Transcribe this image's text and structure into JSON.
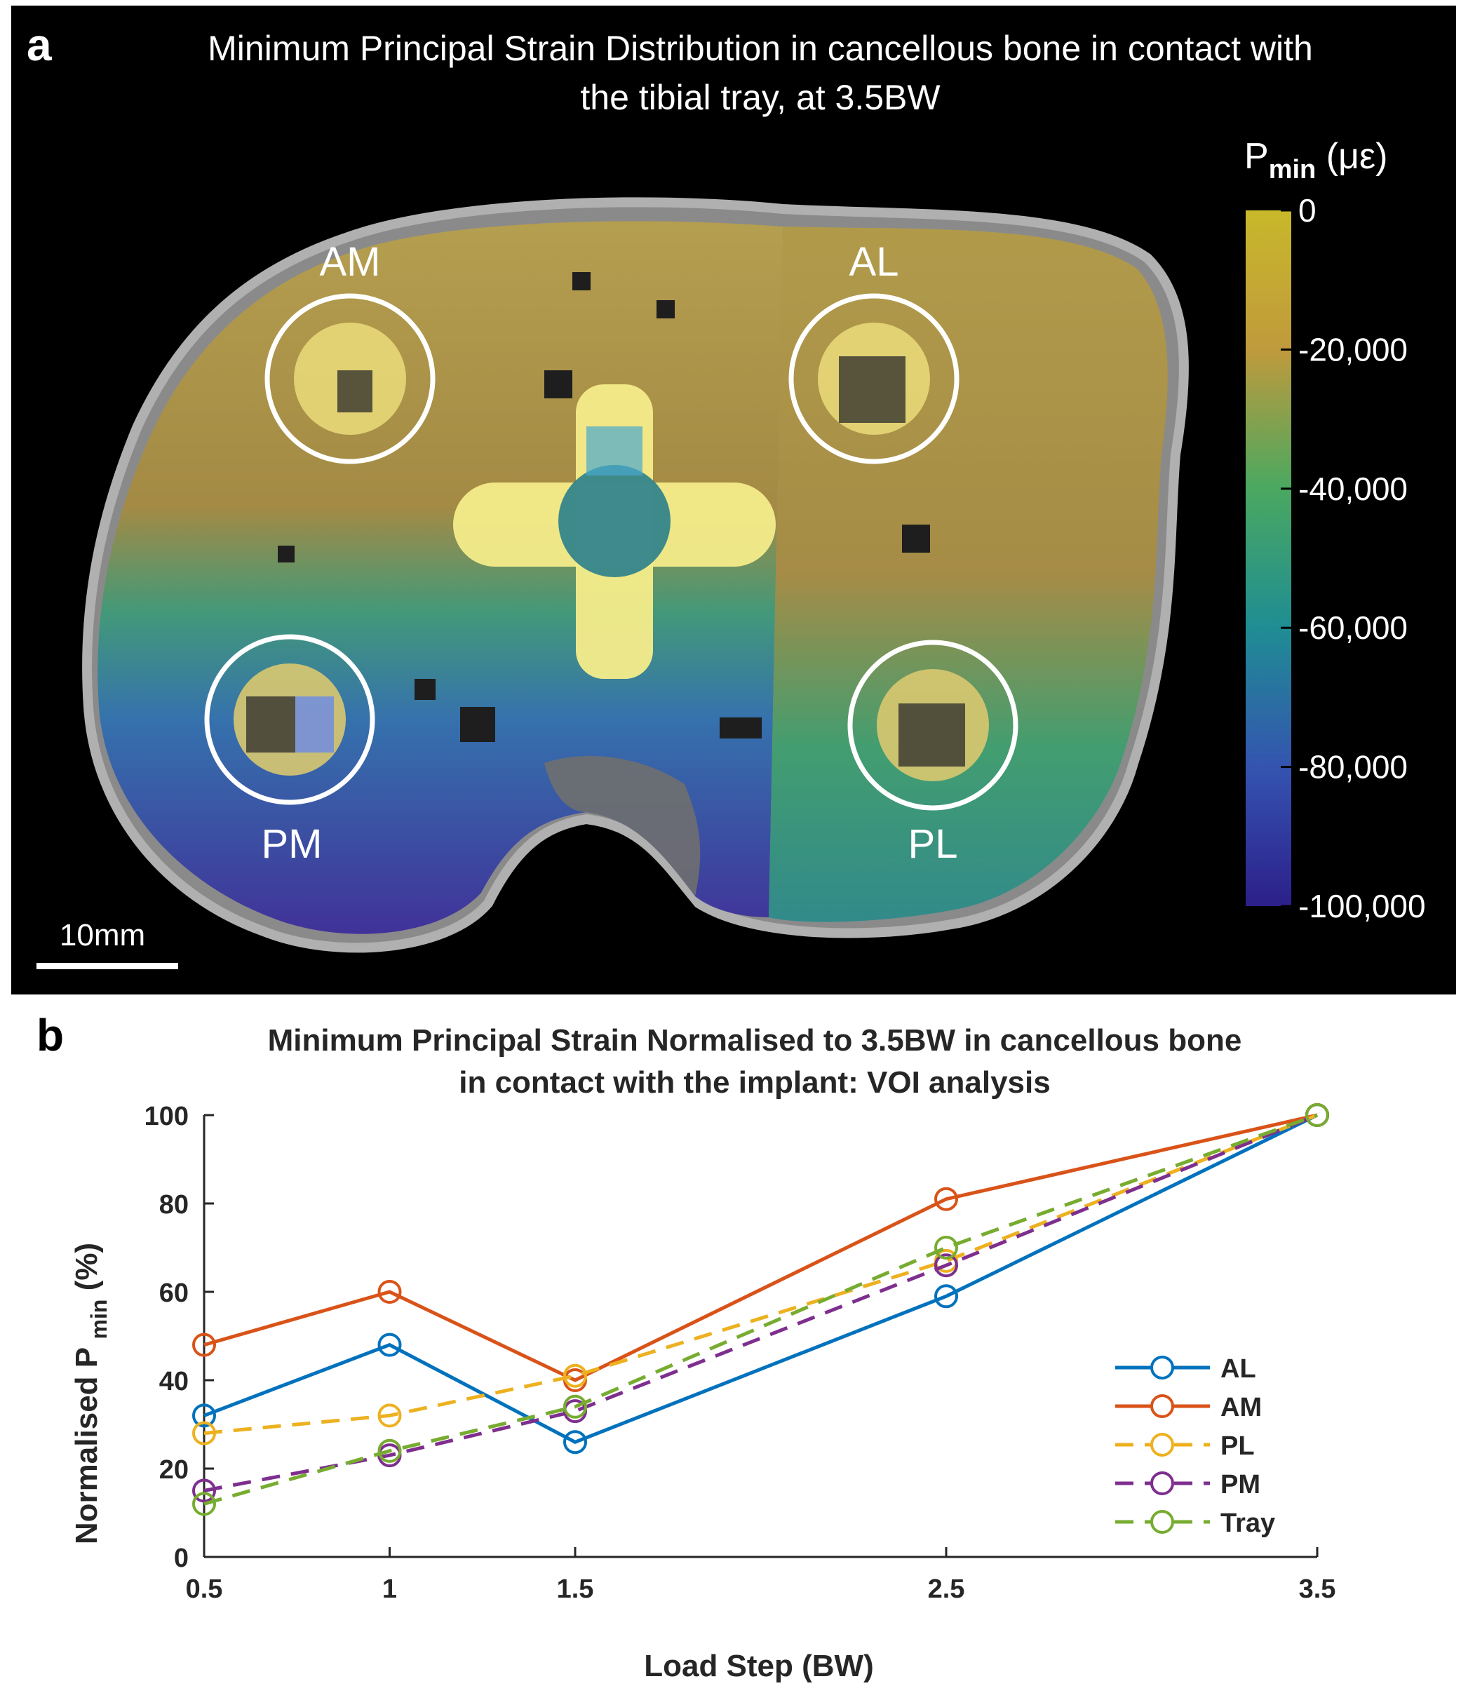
{
  "panel_a": {
    "label": "a",
    "title_line1": "Minimum Principal Strain Distribution in cancellous bone in contact with",
    "title_line2": "the tibial tray, at 3.5BW",
    "colorbar_title_main": "P",
    "colorbar_title_sub": "min",
    "colorbar_title_unit": "(με)",
    "colorbar_ticks": [
      "0",
      "-20,000",
      "-40,000",
      "-60,000",
      "-80,000",
      "-100,000"
    ],
    "colorbar_range": [
      -100000,
      0
    ],
    "colormap": [
      "#fde725",
      "#c9a93a",
      "#9aa83a",
      "#35b779",
      "#21918c",
      "#31688e",
      "#443983",
      "#440154"
    ],
    "regions": [
      "AM",
      "AL",
      "PM",
      "PL"
    ],
    "scale_bar": "10mm"
  },
  "chart_data": {
    "type": "line",
    "label": "b",
    "title_line1": "Minimum Principal Strain Normalised to 3.5BW in cancellous bone",
    "title_line2": "in contact with the implant: VOI analysis",
    "xlabel": "Load Step (BW)",
    "ylabel_main": "Normalised P",
    "ylabel_sub": "min",
    "ylabel_unit": "(%)",
    "x": [
      0.5,
      1,
      1.5,
      2.5,
      3.5
    ],
    "x_tick_labels": [
      "0.5",
      "1",
      "1.5",
      "2.5",
      "3.5"
    ],
    "xlim": [
      0.5,
      3.5
    ],
    "ylim": [
      0,
      100
    ],
    "y_ticks": [
      0,
      20,
      40,
      60,
      80,
      100
    ],
    "legend_position": "right",
    "series": [
      {
        "name": "AL",
        "values": [
          32,
          48,
          26,
          59,
          100
        ],
        "color": "#0072bd",
        "dashed": false
      },
      {
        "name": "AM",
        "values": [
          48,
          60,
          40,
          81,
          100
        ],
        "color": "#d95319",
        "dashed": false
      },
      {
        "name": "PL",
        "values": [
          28,
          32,
          41,
          67,
          100
        ],
        "color": "#edb120",
        "dashed": true
      },
      {
        "name": "PM",
        "values": [
          15,
          23,
          33,
          66,
          100
        ],
        "color": "#7e2f8e",
        "dashed": true
      },
      {
        "name": "Tray",
        "values": [
          12,
          24,
          34,
          70,
          100
        ],
        "color": "#77ac30",
        "dashed": true
      }
    ]
  }
}
